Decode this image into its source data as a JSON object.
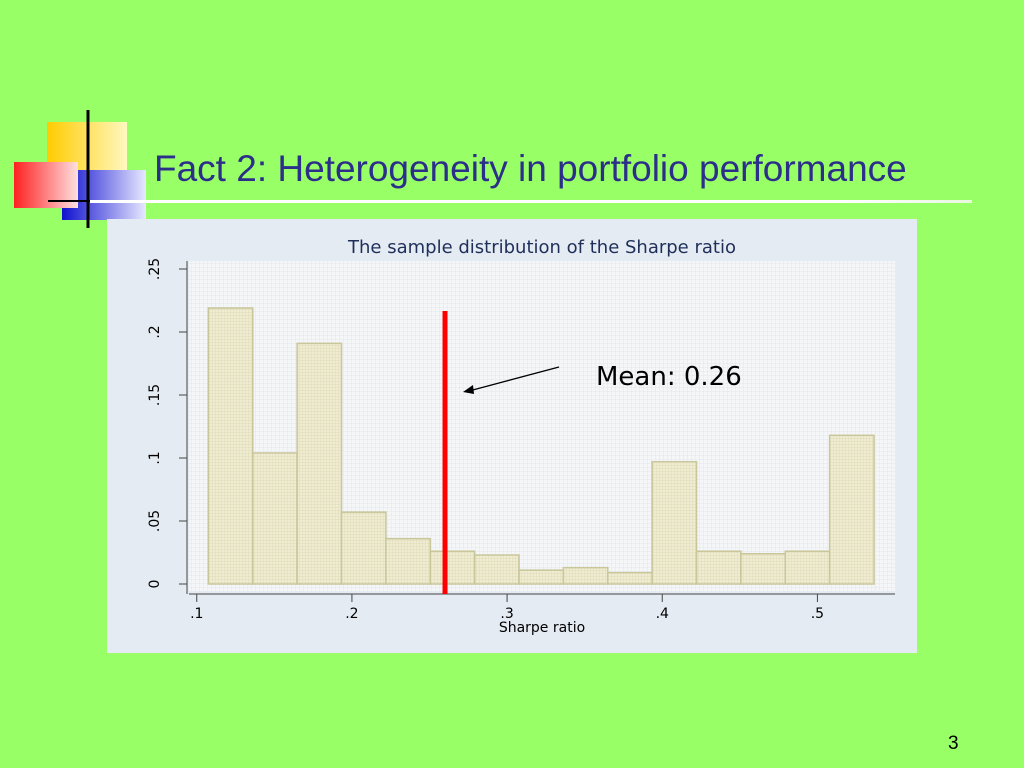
{
  "slide": {
    "title": "Fact 2: Heterogeneity in portfolio performance",
    "page_number": "3",
    "mean_annotation": "Mean: 0.26"
  },
  "colors": {
    "background": "#99ff66",
    "title": "#2b2f8a",
    "bar_fill": "#ece9cc",
    "bar_stroke": "#c9c69a",
    "mean_line": "#ff0000",
    "panel": "#e4ebf2"
  },
  "chart_data": {
    "type": "bar",
    "title": "The sample distribution of the Sharpe ratio",
    "xlabel": "Sharpe ratio",
    "ylabel": "",
    "xlim": [
      0.095,
      0.55
    ],
    "ylim": [
      0,
      0.25
    ],
    "x_ticks": [
      {
        "value": 0.1,
        "label": ".1"
      },
      {
        "value": 0.2,
        "label": ".2"
      },
      {
        "value": 0.3,
        "label": ".3"
      },
      {
        "value": 0.4,
        "label": ".4"
      },
      {
        "value": 0.5,
        "label": ".5"
      }
    ],
    "y_ticks": [
      {
        "value": 0,
        "label": "0"
      },
      {
        "value": 0.05,
        "label": ".05"
      },
      {
        "value": 0.1,
        "label": ".1"
      },
      {
        "value": 0.15,
        "label": ".15"
      },
      {
        "value": 0.2,
        "label": ".2"
      },
      {
        "value": 0.25,
        "label": ".25"
      }
    ],
    "bin_width": 0.0286,
    "bin_start": 0.1075,
    "values": [
      0.219,
      0.104,
      0.191,
      0.057,
      0.036,
      0.026,
      0.023,
      0.011,
      0.013,
      0.009,
      0.097,
      0.026,
      0.024,
      0.026,
      0.118
    ],
    "mean": 0.26,
    "grid": true,
    "legend": "none"
  }
}
